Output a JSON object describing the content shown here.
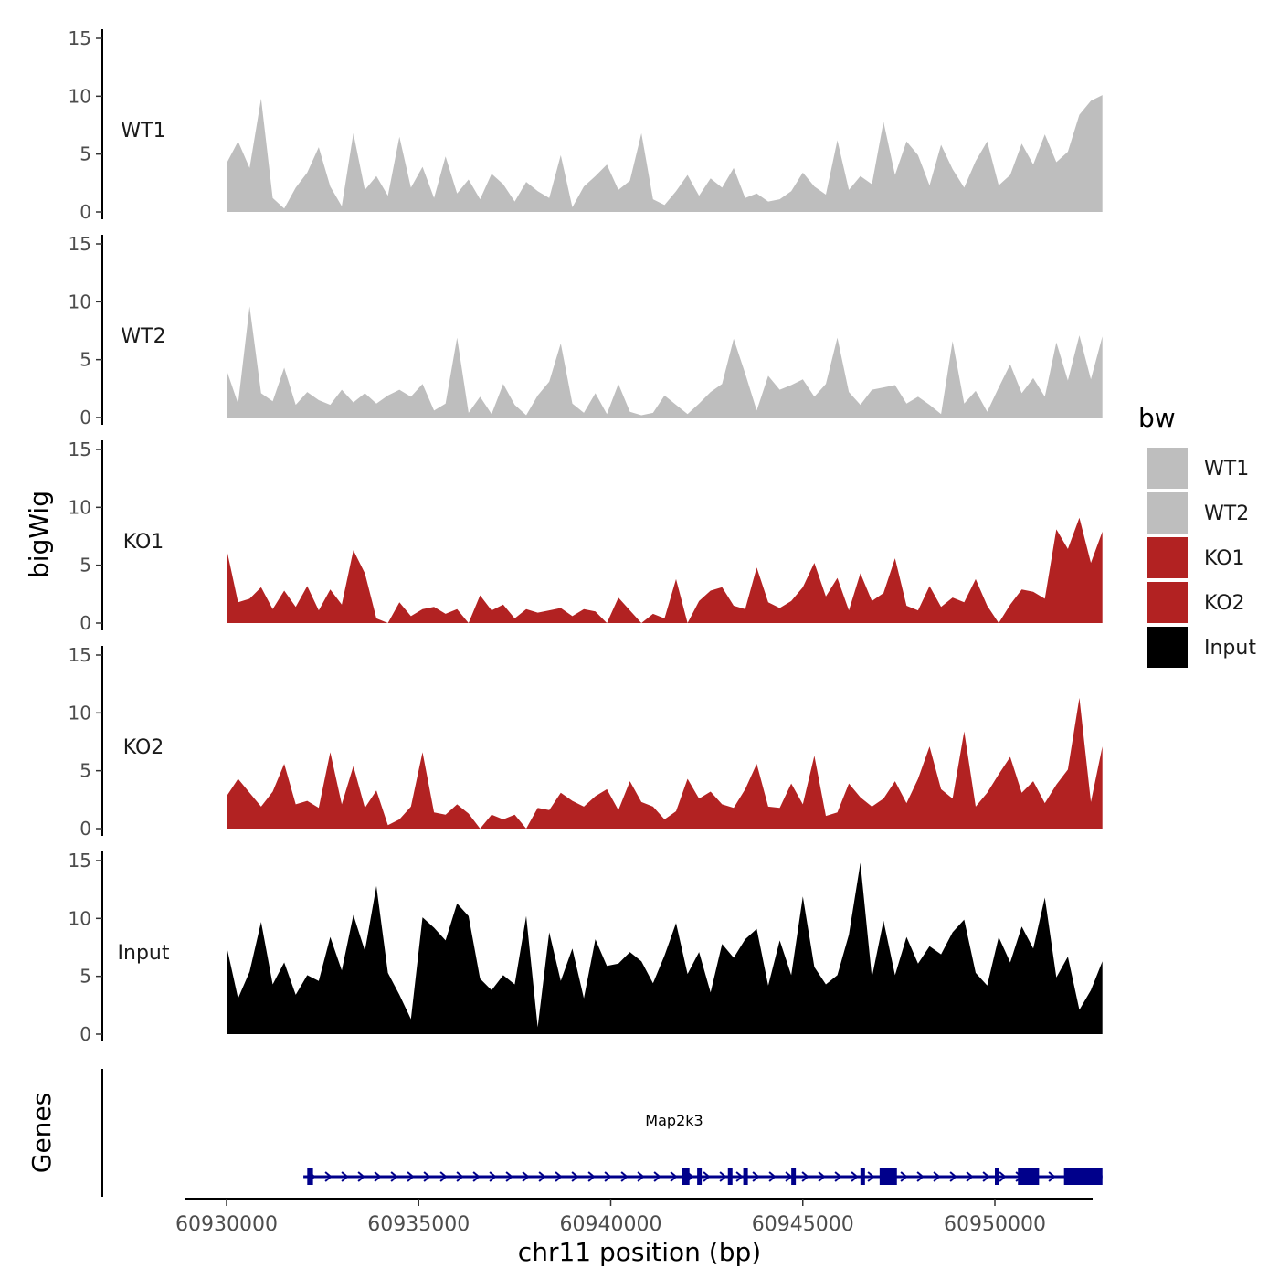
{
  "chart_data": {
    "type": "area",
    "title": "",
    "ylabel": "bigWig",
    "xlabel": "chr11 position (bp)",
    "xlim": [
      60930000,
      60952800
    ],
    "ylim": [
      0,
      15
    ],
    "y_ticks": [
      "0",
      "5",
      "10",
      "15"
    ],
    "x_ticks": [
      {
        "value": 60930000,
        "label": "60930000"
      },
      {
        "value": 60935000,
        "label": "60935000"
      },
      {
        "value": 60940000,
        "label": "60940000"
      },
      {
        "value": 60945000,
        "label": "60945000"
      },
      {
        "value": 60950000,
        "label": "60950000"
      }
    ],
    "legend": {
      "title": "bw",
      "position": "right",
      "entries": [
        {
          "label": "WT1",
          "color": "#BEBEBE"
        },
        {
          "label": "WT2",
          "color": "#BEBEBE"
        },
        {
          "label": "KO1",
          "color": "#B22222"
        },
        {
          "label": "KO2",
          "color": "#B22222"
        },
        {
          "label": "Input",
          "color": "#000000"
        }
      ]
    },
    "series": [
      {
        "name": "WT1",
        "color": "#BEBEBE",
        "x": [
          60930000,
          60930300,
          60930600,
          60930900,
          60931200,
          60931500,
          60931800,
          60932100,
          60932400,
          60932700,
          60933000,
          60933300,
          60933600,
          60933900,
          60934200,
          60934500,
          60934800,
          60935100,
          60935400,
          60935700,
          60936000,
          60936300,
          60936600,
          60936900,
          60937200,
          60937500,
          60937800,
          60938100,
          60938400,
          60938700,
          60939000,
          60939300,
          60939600,
          60939900,
          60940200,
          60940500,
          60940800,
          60941100,
          60941400,
          60941700,
          60942000,
          60942300,
          60942600,
          60942900,
          60943200,
          60943500,
          60943800,
          60944100,
          60944400,
          60944700,
          60945000,
          60945300,
          60945600,
          60945900,
          60946200,
          60946500,
          60946800,
          60947100,
          60947400,
          60947700,
          60948000,
          60948300,
          60948600,
          60948900,
          60949200,
          60949500,
          60949800,
          60950100,
          60950400,
          60950700,
          60951000,
          60951300,
          60951600,
          60951900,
          60952200,
          60952500,
          60952800
        ],
        "values": [
          4.2,
          6.1,
          3.8,
          9.8,
          1.2,
          0.3,
          2.1,
          3.4,
          5.6,
          2.2,
          0.5,
          6.8,
          1.9,
          3.1,
          1.4,
          6.5,
          2.1,
          3.9,
          1.2,
          4.8,
          1.6,
          2.8,
          1.1,
          3.3,
          2.4,
          0.9,
          2.6,
          1.8,
          1.2,
          4.9,
          0.4,
          2.2,
          3.1,
          4.1,
          1.9,
          2.7,
          6.8,
          1.1,
          0.6,
          1.8,
          3.2,
          1.4,
          2.9,
          2.1,
          3.8,
          1.2,
          1.6,
          0.9,
          1.1,
          1.8,
          3.4,
          2.2,
          1.5,
          6.2,
          1.9,
          3.1,
          2.4,
          7.8,
          3.2,
          6.1,
          4.9,
          2.3,
          5.8,
          3.7,
          2.1,
          4.4,
          6.1,
          2.3,
          3.2,
          5.9,
          4.1,
          6.7,
          4.3,
          5.2,
          8.4,
          9.6,
          10.1
        ]
      },
      {
        "name": "WT2",
        "color": "#BEBEBE",
        "x": [
          60930000,
          60930300,
          60930600,
          60930900,
          60931200,
          60931500,
          60931800,
          60932100,
          60932400,
          60932700,
          60933000,
          60933300,
          60933600,
          60933900,
          60934200,
          60934500,
          60934800,
          60935100,
          60935400,
          60935700,
          60936000,
          60936300,
          60936600,
          60936900,
          60937200,
          60937500,
          60937800,
          60938100,
          60938400,
          60938700,
          60939000,
          60939300,
          60939600,
          60939900,
          60940200,
          60940500,
          60940800,
          60941100,
          60941400,
          60941700,
          60942000,
          60942300,
          60942600,
          60942900,
          60943200,
          60943500,
          60943800,
          60944100,
          60944400,
          60944700,
          60945000,
          60945300,
          60945600,
          60945900,
          60946200,
          60946500,
          60946800,
          60947100,
          60947400,
          60947700,
          60948000,
          60948300,
          60948600,
          60948900,
          60949200,
          60949500,
          60949800,
          60950100,
          60950400,
          60950700,
          60951000,
          60951300,
          60951600,
          60951900,
          60952200,
          60952500,
          60952800
        ],
        "values": [
          4.1,
          1.2,
          9.6,
          2.1,
          1.4,
          4.3,
          1.1,
          2.2,
          1.5,
          1.1,
          2.4,
          1.3,
          2.1,
          1.2,
          1.9,
          2.4,
          1.8,
          2.9,
          0.6,
          1.2,
          6.9,
          0.4,
          1.8,
          0.3,
          2.9,
          1.1,
          0.2,
          1.9,
          3.1,
          6.4,
          1.2,
          0.4,
          2.1,
          0.3,
          2.9,
          0.5,
          0.2,
          0.4,
          1.9,
          1.1,
          0.3,
          1.2,
          2.2,
          2.9,
          6.8,
          3.8,
          0.6,
          3.6,
          2.4,
          2.8,
          3.3,
          1.8,
          2.9,
          6.9,
          2.2,
          1.1,
          2.4,
          2.6,
          2.8,
          1.2,
          1.8,
          1.1,
          0.3,
          6.6,
          1.2,
          2.3,
          0.5,
          2.6,
          4.6,
          2.1,
          3.4,
          1.8,
          6.5,
          3.2,
          7.1,
          3.3,
          7.0
        ]
      },
      {
        "name": "KO1",
        "color": "#B22222",
        "x": [
          60930000,
          60930300,
          60930600,
          60930900,
          60931200,
          60931500,
          60931800,
          60932100,
          60932400,
          60932700,
          60933000,
          60933300,
          60933600,
          60933900,
          60934200,
          60934500,
          60934800,
          60935100,
          60935400,
          60935700,
          60936000,
          60936300,
          60936600,
          60936900,
          60937200,
          60937500,
          60937800,
          60938100,
          60938400,
          60938700,
          60939000,
          60939300,
          60939600,
          60939900,
          60940200,
          60940500,
          60940800,
          60941100,
          60941400,
          60941700,
          60942000,
          60942300,
          60942600,
          60942900,
          60943200,
          60943500,
          60943800,
          60944100,
          60944400,
          60944700,
          60945000,
          60945300,
          60945600,
          60945900,
          60946200,
          60946500,
          60946800,
          60947100,
          60947400,
          60947700,
          60948000,
          60948300,
          60948600,
          60948900,
          60949200,
          60949500,
          60949800,
          60950100,
          60950400,
          60950700,
          60951000,
          60951300,
          60951600,
          60951900,
          60952200,
          60952500,
          60952800
        ],
        "values": [
          6.4,
          1.8,
          2.1,
          3.1,
          1.2,
          2.8,
          1.4,
          3.2,
          1.1,
          2.9,
          1.6,
          6.3,
          4.3,
          0.4,
          0,
          1.8,
          0.6,
          1.2,
          1.4,
          0.8,
          1.2,
          0,
          2.4,
          1.1,
          1.6,
          0.4,
          1.2,
          0.9,
          1.1,
          1.3,
          0.6,
          1.2,
          1.0,
          0,
          2.2,
          1.1,
          0,
          0.8,
          0.4,
          3.8,
          0,
          1.9,
          2.8,
          3.1,
          1.5,
          1.2,
          4.8,
          1.8,
          1.3,
          1.9,
          3.1,
          5.2,
          2.3,
          3.9,
          1.1,
          4.3,
          1.9,
          2.6,
          5.6,
          1.5,
          1.1,
          3.2,
          1.4,
          2.2,
          1.8,
          3.8,
          1.5,
          0,
          1.6,
          2.9,
          2.7,
          2.1,
          8.1,
          6.4,
          9.1,
          5.2,
          7.9
        ]
      },
      {
        "name": "KO2",
        "color": "#B22222",
        "x": [
          60930000,
          60930300,
          60930600,
          60930900,
          60931200,
          60931500,
          60931800,
          60932100,
          60932400,
          60932700,
          60933000,
          60933300,
          60933600,
          60933900,
          60934200,
          60934500,
          60934800,
          60935100,
          60935400,
          60935700,
          60936000,
          60936300,
          60936600,
          60936900,
          60937200,
          60937500,
          60937800,
          60938100,
          60938400,
          60938700,
          60939000,
          60939300,
          60939600,
          60939900,
          60940200,
          60940500,
          60940800,
          60941100,
          60941400,
          60941700,
          60942000,
          60942300,
          60942600,
          60942900,
          60943200,
          60943500,
          60943800,
          60944100,
          60944400,
          60944700,
          60945000,
          60945300,
          60945600,
          60945900,
          60946200,
          60946500,
          60946800,
          60947100,
          60947400,
          60947700,
          60948000,
          60948300,
          60948600,
          60948900,
          60949200,
          60949500,
          60949800,
          60950100,
          60950400,
          60950700,
          60951000,
          60951300,
          60951600,
          60951900,
          60952200,
          60952500,
          60952800
        ],
        "values": [
          2.8,
          4.3,
          3.1,
          1.9,
          3.2,
          5.6,
          2.1,
          2.4,
          1.8,
          6.6,
          2.1,
          5.4,
          1.8,
          3.3,
          0.3,
          0.8,
          1.9,
          6.6,
          1.4,
          1.2,
          2.1,
          1.3,
          0,
          1.2,
          0.8,
          1.2,
          0,
          1.8,
          1.6,
          3.1,
          2.4,
          1.9,
          2.8,
          3.4,
          1.6,
          4.1,
          2.3,
          1.9,
          0.8,
          1.5,
          4.3,
          2.6,
          3.2,
          2.1,
          1.8,
          3.4,
          5.6,
          1.9,
          1.8,
          3.9,
          2.1,
          6.3,
          1.1,
          1.4,
          3.9,
          2.7,
          1.9,
          2.6,
          4.1,
          2.2,
          4.3,
          7.1,
          3.4,
          2.6,
          8.4,
          1.9,
          3.1,
          4.7,
          6.2,
          3.1,
          4.1,
          2.2,
          3.8,
          5.1,
          11.3,
          2.3,
          7.1
        ]
      },
      {
        "name": "Input",
        "color": "#000000",
        "x": [
          60930000,
          60930300,
          60930600,
          60930900,
          60931200,
          60931500,
          60931800,
          60932100,
          60932400,
          60932700,
          60933000,
          60933300,
          60933600,
          60933900,
          60934200,
          60934500,
          60934800,
          60935100,
          60935400,
          60935700,
          60936000,
          60936300,
          60936600,
          60936900,
          60937200,
          60937500,
          60937800,
          60938100,
          60938400,
          60938700,
          60939000,
          60939300,
          60939600,
          60939900,
          60940200,
          60940500,
          60940800,
          60941100,
          60941400,
          60941700,
          60942000,
          60942300,
          60942600,
          60942900,
          60943200,
          60943500,
          60943800,
          60944100,
          60944400,
          60944700,
          60945000,
          60945300,
          60945600,
          60945900,
          60946200,
          60946500,
          60946800,
          60947100,
          60947400,
          60947700,
          60948000,
          60948300,
          60948600,
          60948900,
          60949200,
          60949500,
          60949800,
          60950100,
          60950400,
          60950700,
          60951000,
          60951300,
          60951600,
          60951900,
          60952200,
          60952500,
          60952800
        ],
        "values": [
          7.6,
          3.1,
          5.4,
          9.7,
          4.3,
          6.2,
          3.4,
          5.1,
          4.6,
          8.4,
          5.5,
          10.3,
          7.2,
          12.8,
          5.3,
          3.4,
          1.3,
          10.1,
          9.2,
          8.1,
          11.3,
          10.2,
          4.8,
          3.8,
          5.1,
          4.3,
          10.2,
          0.6,
          8.8,
          4.6,
          7.4,
          3.1,
          8.2,
          5.9,
          6.1,
          7.1,
          6.3,
          4.4,
          6.8,
          9.6,
          5.2,
          7.1,
          3.6,
          7.8,
          6.6,
          8.2,
          9.1,
          4.2,
          8.1,
          5.1,
          11.9,
          5.8,
          4.3,
          5.1,
          8.6,
          14.8,
          4.9,
          9.8,
          5.1,
          8.4,
          6.1,
          7.6,
          6.9,
          8.8,
          9.9,
          5.3,
          4.2,
          8.4,
          6.2,
          9.3,
          7.4,
          11.8,
          4.9,
          6.7,
          2.1,
          3.8,
          6.3
        ]
      }
    ],
    "genes_track": {
      "label": "Genes",
      "gene_name": "Map2k3",
      "color": "#00008B",
      "span": [
        60932000,
        60952800
      ],
      "exons": [
        [
          60932100,
          60932250
        ],
        [
          60941850,
          60942050
        ],
        [
          60942250,
          60942350
        ],
        [
          60943050,
          60943150
        ],
        [
          60943450,
          60943570
        ],
        [
          60944700,
          60944800
        ],
        [
          60946500,
          60946600
        ],
        [
          60947000,
          60947450
        ],
        [
          60950000,
          60950100
        ],
        [
          60950600,
          60951150
        ],
        [
          60951800,
          60952800
        ]
      ]
    }
  }
}
